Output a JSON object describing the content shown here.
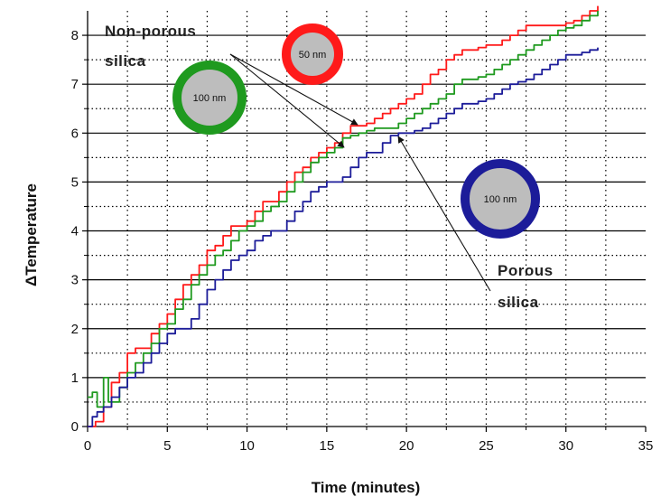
{
  "chart_data": {
    "type": "line",
    "title": "",
    "xlabel": "Time (minutes)",
    "ylabel": "ΔTemperature",
    "xlim": [
      0,
      35
    ],
    "ylim": [
      0,
      8.5
    ],
    "xticks": [
      0,
      5,
      10,
      15,
      20,
      25,
      30,
      35
    ],
    "yticks": [
      0,
      1,
      2,
      3,
      4,
      5,
      6,
      7,
      8
    ],
    "grid": true,
    "series": [
      {
        "color": "#ff1a1a",
        "x": [
          0,
          0.5,
          1,
          1.5,
          2,
          2.5,
          3,
          3.5,
          4,
          4.5,
          5,
          5.5,
          6,
          6.5,
          7,
          7.5,
          8,
          8.5,
          9,
          9.5,
          10,
          10.5,
          11,
          11.5,
          12,
          12.5,
          13,
          13.5,
          14,
          14.5,
          15,
          15.5,
          16,
          16.5,
          17,
          17.5,
          18,
          18.5,
          19,
          19.5,
          20,
          20.5,
          21,
          21.5,
          22,
          22.5,
          23,
          23.5,
          24,
          24.5,
          25,
          25.5,
          26,
          26.5,
          27,
          27.5,
          28,
          28.5,
          29,
          29.5,
          30,
          30.5,
          31,
          31.5,
          32
        ],
        "y": [
          0,
          0.1,
          0.4,
          0.9,
          1.1,
          1.5,
          1.6,
          1.6,
          1.9,
          2.1,
          2.3,
          2.6,
          2.9,
          3.1,
          3.3,
          3.6,
          3.7,
          3.9,
          4.1,
          4.1,
          4.2,
          4.4,
          4.6,
          4.6,
          4.8,
          5.0,
          5.2,
          5.3,
          5.5,
          5.6,
          5.7,
          5.8,
          6.0,
          6.15,
          6.15,
          6.2,
          6.3,
          6.4,
          6.5,
          6.6,
          6.7,
          6.8,
          7.0,
          7.2,
          7.3,
          7.5,
          7.6,
          7.7,
          7.7,
          7.75,
          7.8,
          7.8,
          7.9,
          8.0,
          8.1,
          8.2,
          8.2,
          8.2,
          8.2,
          8.2,
          8.25,
          8.3,
          8.4,
          8.5,
          8.6
        ]
      },
      {
        "color": "#1f9a1f",
        "x": [
          0,
          0.3,
          0.6,
          1,
          1.3,
          1.7,
          2,
          2.5,
          3,
          3.5,
          4,
          4.5,
          5,
          5.5,
          6,
          6.5,
          7,
          7.5,
          8,
          8.5,
          9,
          9.5,
          10,
          10.5,
          11,
          11.5,
          12,
          12.5,
          13,
          13.5,
          14,
          14.5,
          15,
          15.5,
          16,
          16.5,
          17,
          17.5,
          18,
          18.5,
          19,
          19.5,
          20,
          20.5,
          21,
          21.5,
          22,
          22.5,
          23,
          23.5,
          24,
          24.5,
          25,
          25.5,
          26,
          26.5,
          27,
          27.5,
          28,
          28.5,
          29,
          29.5,
          30,
          30.5,
          31,
          31.5,
          32
        ],
        "y": [
          0.6,
          0.7,
          0.4,
          1.0,
          0.5,
          0.5,
          0.8,
          1.1,
          1.3,
          1.5,
          1.7,
          2.0,
          2.1,
          2.4,
          2.6,
          2.9,
          3.1,
          3.3,
          3.5,
          3.6,
          3.8,
          4.0,
          4.1,
          4.2,
          4.4,
          4.5,
          4.6,
          4.8,
          5.0,
          5.2,
          5.4,
          5.5,
          5.6,
          5.7,
          5.9,
          5.95,
          6.0,
          6.05,
          6.1,
          6.1,
          6.1,
          6.2,
          6.3,
          6.4,
          6.5,
          6.6,
          6.7,
          6.8,
          7.0,
          7.1,
          7.1,
          7.15,
          7.2,
          7.3,
          7.4,
          7.5,
          7.6,
          7.7,
          7.8,
          7.9,
          8.0,
          8.1,
          8.15,
          8.2,
          8.3,
          8.4,
          8.5
        ]
      },
      {
        "color": "#1c1c99",
        "x": [
          0,
          0.3,
          0.6,
          1,
          1.5,
          2,
          2.5,
          3,
          3.5,
          4,
          4.5,
          5,
          5.5,
          6,
          6.5,
          7,
          7.5,
          8,
          8.5,
          9,
          9.5,
          10,
          10.5,
          11,
          11.5,
          12,
          12.5,
          13,
          13.5,
          14,
          14.5,
          15,
          15.5,
          16,
          16.5,
          17,
          17.5,
          18,
          18.5,
          19,
          19.5,
          20,
          20.5,
          21,
          21.5,
          22,
          22.5,
          23,
          23.5,
          24,
          24.5,
          25,
          25.5,
          26,
          26.5,
          27,
          27.5,
          28,
          28.5,
          29,
          29.5,
          30,
          30.5,
          31,
          31.5,
          32
        ],
        "y": [
          0,
          0.2,
          0.3,
          0.4,
          0.6,
          0.8,
          1.0,
          1.1,
          1.3,
          1.5,
          1.7,
          1.9,
          2.0,
          2.0,
          2.2,
          2.5,
          2.8,
          3.0,
          3.2,
          3.4,
          3.5,
          3.6,
          3.8,
          3.9,
          4.0,
          4.0,
          4.2,
          4.4,
          4.6,
          4.8,
          4.9,
          5.0,
          5.0,
          5.1,
          5.3,
          5.5,
          5.6,
          5.6,
          5.8,
          5.95,
          6.0,
          6.0,
          6.05,
          6.1,
          6.2,
          6.3,
          6.4,
          6.5,
          6.6,
          6.6,
          6.65,
          6.7,
          6.8,
          6.9,
          7.0,
          7.05,
          7.1,
          7.2,
          7.3,
          7.4,
          7.5,
          7.6,
          7.6,
          7.65,
          7.7,
          7.75
        ]
      }
    ],
    "annotations": [
      {
        "id": "nonporous",
        "lines": [
          "Non-porous",
          "silica"
        ]
      },
      {
        "id": "porous",
        "lines": [
          "Porous",
          "silica"
        ]
      }
    ],
    "markers": [
      {
        "label": "100 nm",
        "ring_color": "#1f9a1f"
      },
      {
        "label": "50 nm",
        "ring_color": "#ff1a1a"
      },
      {
        "label": "100 nm",
        "ring_color": "#1c1c99"
      }
    ]
  }
}
